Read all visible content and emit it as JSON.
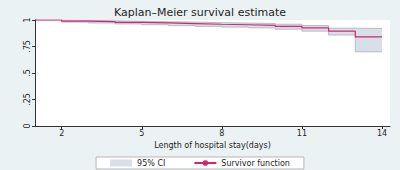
{
  "chart_data": {
    "type": "line",
    "title": "Kaplan–Meier survival estimate",
    "x_label": "Length of hospital stay(days)",
    "x": [
      1,
      2,
      3,
      4,
      5,
      6,
      7,
      8,
      9,
      10,
      11,
      12,
      13,
      14
    ],
    "series": [
      {
        "name": "Survivor function",
        "color": "#d6246e",
        "line_style": "step",
        "values": [
          1,
          0.99,
          0.985,
          0.978,
          0.972,
          0.966,
          0.96,
          0.955,
          0.95,
          0.94,
          0.925,
          0.895,
          0.84,
          0.84
        ]
      }
    ],
    "band": {
      "name": "95% CI",
      "color": "#d9dfe8",
      "lower": [
        1,
        0.98,
        0.972,
        0.963,
        0.955,
        0.947,
        0.94,
        0.933,
        0.926,
        0.913,
        0.895,
        0.858,
        0.7,
        0.7
      ],
      "upper": [
        1,
        0.995,
        0.992,
        0.988,
        0.984,
        0.98,
        0.975,
        0.971,
        0.967,
        0.96,
        0.948,
        0.923,
        0.92,
        0.92
      ]
    },
    "xlim": [
      1,
      14.3
    ],
    "xticks": [
      2,
      5,
      8,
      11,
      14
    ],
    "ylim": [
      0,
      1
    ],
    "yticks": [
      0,
      {
        "value": 0.25,
        "label": ".25"
      },
      {
        "value": 0.5,
        "label": ".5"
      },
      {
        "value": 0.75,
        "label": ".75"
      },
      1
    ],
    "grid": false,
    "legend": "bottom"
  }
}
